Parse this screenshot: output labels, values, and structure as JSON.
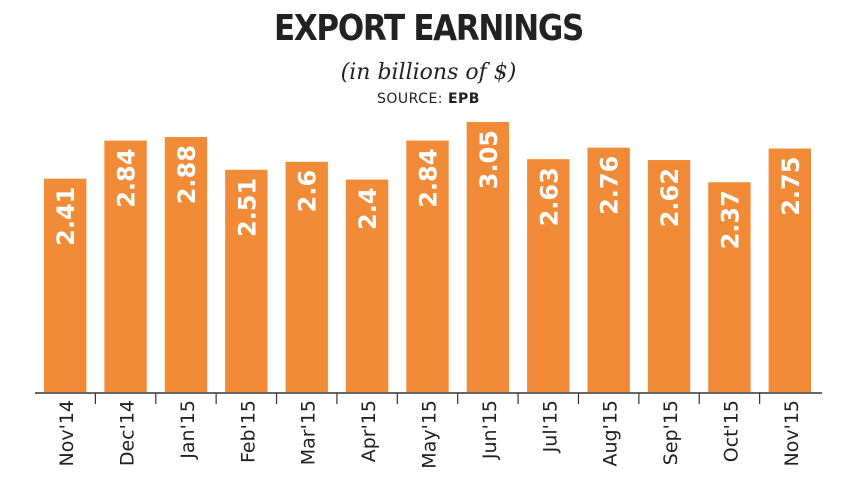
{
  "title": "EXPORT EARNINGS",
  "subtitle": "(in billions of $)",
  "source_label": "SOURCE:",
  "source_name": "EPB",
  "colors": {
    "bar": "#f28b38",
    "text": "#222222",
    "label": "#ffffff",
    "axis": "#333333"
  },
  "chart_data": {
    "type": "bar",
    "categories": [
      "Nov'14",
      "Dec'14",
      "Jan'15",
      "Feb'15",
      "Mar'15",
      "Apr'15",
      "May'15",
      "Jun'15",
      "Jul'15",
      "Aug'15",
      "Sep'15",
      "Oct'15",
      "Nov'15"
    ],
    "values": [
      2.41,
      2.84,
      2.88,
      2.51,
      2.6,
      2.4,
      2.84,
      3.05,
      2.63,
      2.76,
      2.62,
      2.37,
      2.75
    ],
    "value_labels": [
      "2.41",
      "2.84",
      "2.88",
      "2.51",
      "2.6",
      "2.4",
      "2.84",
      "3.05",
      "2.63",
      "2.76",
      "2.62",
      "2.37",
      "2.75"
    ],
    "title": "EXPORT EARNINGS",
    "subtitle": "(in billions of $)",
    "xlabel": "",
    "ylabel": "",
    "ylim": [
      0,
      3.05
    ],
    "grid": false,
    "legend": "none"
  }
}
